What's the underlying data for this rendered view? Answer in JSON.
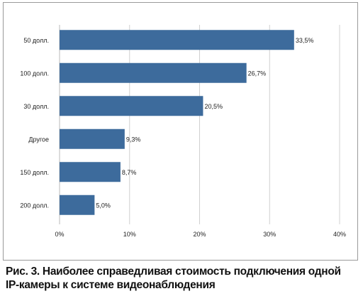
{
  "chart_data": {
    "type": "bar",
    "orientation": "horizontal",
    "categories": [
      "50 долл.",
      "100 долл.",
      "30 долл.",
      "Другое",
      "150 долл.",
      "200 долл."
    ],
    "values": [
      33.5,
      26.7,
      20.5,
      9.3,
      8.7,
      5.0
    ],
    "data_labels": [
      "33,5%",
      "26,7%",
      "20,5%",
      "9,3%",
      "8,7%",
      "5,0%"
    ],
    "xlim": [
      0,
      40
    ],
    "x_ticks": [
      0,
      10,
      20,
      30,
      40
    ],
    "x_tick_labels": [
      "0%",
      "10%",
      "20%",
      "30%",
      "40%"
    ],
    "grid": "vertical",
    "bar_color": "#3d6b9c",
    "grid_color": "#d0d0d0"
  },
  "caption": {
    "line1": "Рис. 3. Наиболее справедливая стоимость подключения одной",
    "line2": "IP-камеры к системе видеонаблюдения"
  }
}
